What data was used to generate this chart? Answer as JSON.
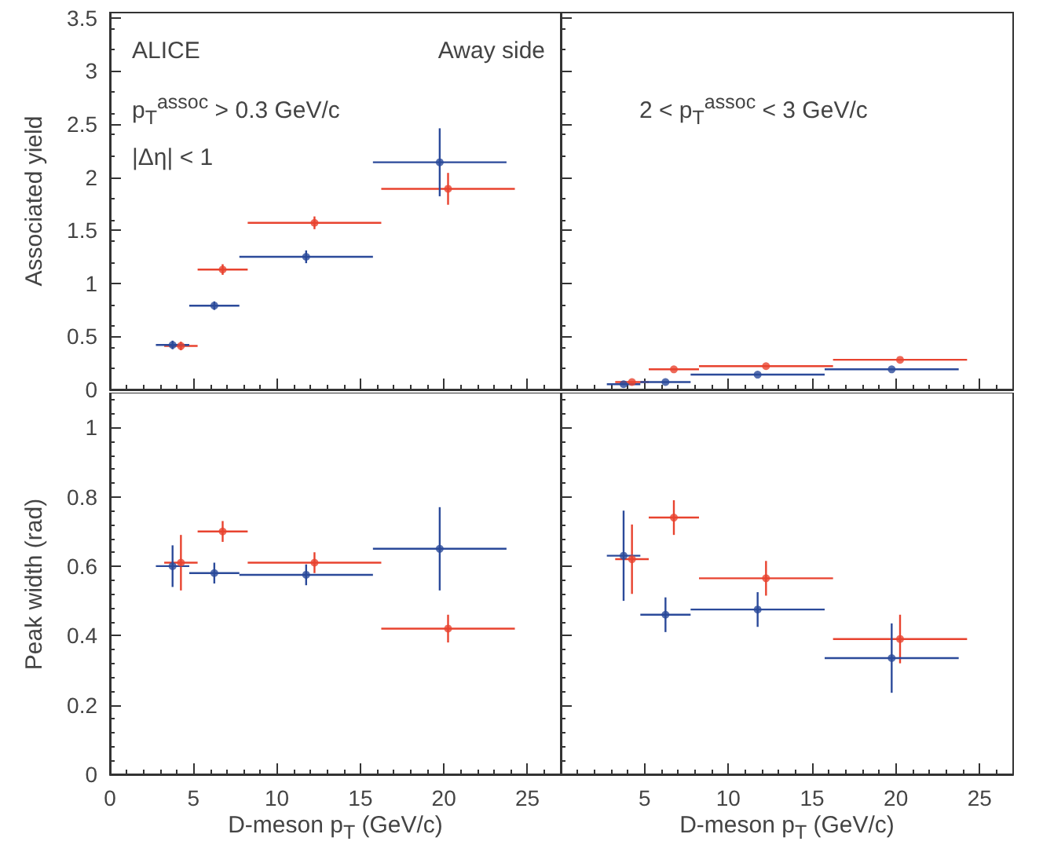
{
  "chart_data": [
    {
      "type": "scatter",
      "ylabel": "Associated yield",
      "annotations": [
        "ALICE",
        "Away side",
        "p$_{T}$$^{assoc}$ > 0.3 GeV/c",
        "|Δη| < 1"
      ],
      "xlim": [
        0,
        27
      ],
      "xticks": [
        0,
        5,
        10,
        15,
        20,
        25
      ],
      "ylim": [
        0,
        3.55
      ],
      "yticks": [
        0,
        0.5,
        1,
        1.5,
        2,
        2.5,
        3,
        3.5
      ],
      "tick_labels": "y",
      "grid": false,
      "marker": "circle",
      "series": [
        {
          "color": "#e8432f",
          "x": [
            4.25,
            6.75,
            12.25,
            20.25
          ],
          "values": [
            0.41,
            1.13,
            1.57,
            1.89
          ],
          "errors": [
            0.04,
            0.05,
            0.06,
            0.15
          ],
          "xerrors": [
            1,
            1.5,
            4,
            4
          ]
        },
        {
          "color": "#2b4a9a",
          "x": [
            3.75,
            6.25,
            11.75,
            19.75
          ],
          "values": [
            0.42,
            0.79,
            1.25,
            2.14
          ],
          "errors": [
            0.04,
            0.04,
            0.06,
            0.32
          ],
          "xerrors": [
            1,
            1.5,
            4,
            4
          ]
        }
      ]
    },
    {
      "type": "scatter",
      "annotations": [
        "2 < p$_{T}$$^{assoc}$ < 3 GeV/c"
      ],
      "xlim": [
        0,
        27
      ],
      "xticks": [
        5,
        10,
        15,
        20,
        25
      ],
      "ylim": [
        0,
        3.55
      ],
      "yticks": [
        0,
        0.5,
        1,
        1.5,
        2,
        2.5,
        3,
        3.5
      ],
      "tick_labels": false,
      "grid": false,
      "marker": "circle",
      "series": [
        {
          "color": "#e8432f",
          "x": [
            4.25,
            6.75,
            12.25,
            20.25
          ],
          "values": [
            0.07,
            0.19,
            0.22,
            0.28
          ],
          "xerrors": [
            1,
            1.5,
            4,
            4
          ]
        },
        {
          "color": "#2b4a9a",
          "x": [
            3.75,
            6.25,
            11.75,
            19.75
          ],
          "values": [
            0.05,
            0.07,
            0.14,
            0.19
          ],
          "xerrors": [
            1,
            1.5,
            4,
            4
          ]
        }
      ]
    },
    {
      "type": "scatter",
      "ylabel": "Peak width (rad)",
      "xlabel": "D-meson p$_{T}$ (GeV/c)",
      "xlim": [
        0,
        27
      ],
      "xticks": [
        0,
        5,
        10,
        15,
        20,
        25
      ],
      "ylim": [
        0,
        1.1
      ],
      "yticks": [
        0,
        0.2,
        0.4,
        0.6,
        0.8,
        1
      ],
      "grid": false,
      "marker": "circle",
      "series": [
        {
          "color": "#e8432f",
          "x": [
            4.25,
            6.75,
            12.25,
            20.25
          ],
          "values": [
            0.61,
            0.7,
            0.61,
            0.42
          ],
          "errors": [
            0.08,
            0.03,
            0.03,
            0.04
          ],
          "xerrors": [
            1,
            1.5,
            4,
            4
          ]
        },
        {
          "color": "#2b4a9a",
          "x": [
            3.75,
            6.25,
            11.75,
            19.75
          ],
          "values": [
            0.6,
            0.58,
            0.575,
            0.65
          ],
          "errors": [
            0.06,
            0.03,
            0.03,
            0.12
          ],
          "xerrors": [
            1,
            1.5,
            4,
            4
          ]
        }
      ]
    },
    {
      "type": "scatter",
      "xlabel": "D-meson p$_{T}$ (GeV/c)",
      "xlim": [
        0,
        27
      ],
      "xticks": [
        5,
        10,
        15,
        20,
        25
      ],
      "ylim": [
        0,
        1.1
      ],
      "yticks": [
        0,
        0.2,
        0.4,
        0.6,
        0.8,
        1
      ],
      "tick_labels": "x",
      "grid": false,
      "marker": "circle",
      "series": [
        {
          "color": "#e8432f",
          "x": [
            4.25,
            6.75,
            12.25,
            20.25
          ],
          "values": [
            0.62,
            0.74,
            0.565,
            0.39
          ],
          "errors": [
            0.1,
            0.05,
            0.05,
            0.07
          ],
          "xerrors": [
            1,
            1.5,
            4,
            4
          ]
        },
        {
          "color": "#2b4a9a",
          "x": [
            3.75,
            6.25,
            11.75,
            19.75
          ],
          "values": [
            0.63,
            0.46,
            0.475,
            0.335
          ],
          "errors": [
            0.13,
            0.05,
            0.05,
            0.1
          ],
          "xerrors": [
            1,
            1.5,
            4,
            4
          ]
        }
      ]
    }
  ]
}
